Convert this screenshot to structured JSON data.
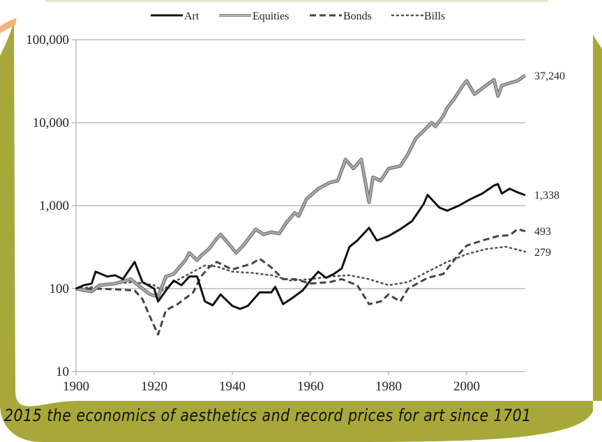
{
  "colors": {
    "olive": "#a8a83a",
    "peach": "#f5b27a",
    "art": "#111111",
    "equities": "#999999",
    "bonds": "#444444",
    "bills": "#555555",
    "grid": "#bdbdbd"
  },
  "caption": "2015 the economics of aesthetics and record prices for art since 1701",
  "chart_data": {
    "type": "line",
    "title": "",
    "xlabel": "",
    "ylabel": "",
    "yscale": "log",
    "xlim": [
      1900,
      2015
    ],
    "ylim": [
      10,
      100000
    ],
    "grid": true,
    "legend_position": "top",
    "x_ticks": [
      1900,
      1920,
      1940,
      1960,
      1980,
      2000
    ],
    "x_tick_labels": [
      "1900",
      "1920",
      "1940",
      "1960",
      "1980",
      "2000"
    ],
    "y_ticks": [
      10,
      100,
      1000,
      10000,
      100000
    ],
    "y_tick_labels": [
      "10",
      "100",
      "1,000",
      "10,000",
      "100,000"
    ],
    "series": [
      {
        "name": "Art",
        "style": "solid",
        "end_label": "1,338",
        "x": [
          1900,
          1902,
          1904,
          1905,
          1908,
          1910,
          1912,
          1915,
          1917,
          1920,
          1921,
          1923,
          1925,
          1927,
          1929,
          1931,
          1933,
          1935,
          1937,
          1940,
          1942,
          1944,
          1947,
          1950,
          1951,
          1953,
          1955,
          1958,
          1960,
          1962,
          1964,
          1966,
          1968,
          1970,
          1972,
          1975,
          1977,
          1980,
          1983,
          1986,
          1989,
          1990,
          1991,
          1993,
          1995,
          1998,
          2001,
          2004,
          2007,
          2008,
          2009,
          2011,
          2013,
          2015
        ],
        "values": [
          100,
          110,
          115,
          160,
          140,
          145,
          130,
          210,
          120,
          100,
          70,
          95,
          125,
          110,
          140,
          140,
          70,
          63,
          85,
          62,
          57,
          62,
          90,
          90,
          105,
          65,
          75,
          95,
          125,
          160,
          135,
          150,
          175,
          320,
          380,
          540,
          380,
          430,
          520,
          650,
          1050,
          1350,
          1200,
          950,
          870,
          1000,
          1200,
          1400,
          1750,
          1820,
          1400,
          1600,
          1450,
          1338
        ]
      },
      {
        "name": "Equities",
        "style": "solid",
        "end_label": "37,240",
        "x": [
          1900,
          1904,
          1906,
          1910,
          1914,
          1917,
          1919,
          1921,
          1923,
          1925,
          1928,
          1929,
          1931,
          1932,
          1934,
          1936,
          1937,
          1939,
          1941,
          1943,
          1946,
          1948,
          1950,
          1952,
          1954,
          1956,
          1957,
          1959,
          1962,
          1965,
          1967,
          1969,
          1971,
          1973,
          1975,
          1976,
          1978,
          1980,
          1983,
          1985,
          1987,
          1989,
          1991,
          1992,
          1994,
          1995,
          1997,
          1999,
          2000,
          2002,
          2004,
          2007,
          2008,
          2009,
          2011,
          2013,
          2015
        ],
        "values": [
          100,
          92,
          110,
          115,
          130,
          100,
          85,
          80,
          140,
          150,
          220,
          270,
          220,
          250,
          300,
          400,
          450,
          350,
          270,
          340,
          520,
          450,
          480,
          460,
          640,
          820,
          750,
          1200,
          1600,
          1900,
          2000,
          3600,
          2800,
          3600,
          1100,
          2200,
          2000,
          2800,
          3000,
          4200,
          6500,
          8000,
          10000,
          9000,
          12000,
          15000,
          20000,
          28000,
          32000,
          22000,
          26000,
          33000,
          21000,
          28000,
          30000,
          32000,
          37240
        ]
      },
      {
        "name": "Bonds",
        "style": "dashed",
        "end_label": "493",
        "x": [
          1900,
          1905,
          1910,
          1915,
          1917,
          1919,
          1921,
          1923,
          1926,
          1930,
          1932,
          1934,
          1936,
          1940,
          1945,
          1947,
          1950,
          1953,
          1956,
          1960,
          1965,
          1968,
          1972,
          1975,
          1978,
          1980,
          1983,
          1985,
          1990,
          1994,
          1998,
          2000,
          2004,
          2008,
          2011,
          2013,
          2015
        ],
        "values": [
          100,
          100,
          98,
          95,
          75,
          45,
          28,
          55,
          65,
          90,
          140,
          180,
          210,
          170,
          200,
          230,
          180,
          130,
          130,
          115,
          120,
          130,
          110,
          65,
          70,
          85,
          70,
          100,
          135,
          150,
          260,
          330,
          380,
          430,
          440,
          520,
          493
        ]
      },
      {
        "name": "Bills",
        "style": "dotted",
        "end_label": "279",
        "x": [
          1900,
          1905,
          1910,
          1915,
          1920,
          1922,
          1925,
          1930,
          1933,
          1936,
          1940,
          1945,
          1950,
          1955,
          1960,
          1965,
          1970,
          1975,
          1980,
          1985,
          1990,
          1995,
          2000,
          2005,
          2010,
          2015
        ],
        "values": [
          100,
          105,
          115,
          120,
          110,
          95,
          120,
          160,
          190,
          185,
          160,
          155,
          145,
          125,
          130,
          140,
          145,
          130,
          110,
          120,
          160,
          210,
          260,
          300,
          320,
          279
        ]
      }
    ]
  }
}
